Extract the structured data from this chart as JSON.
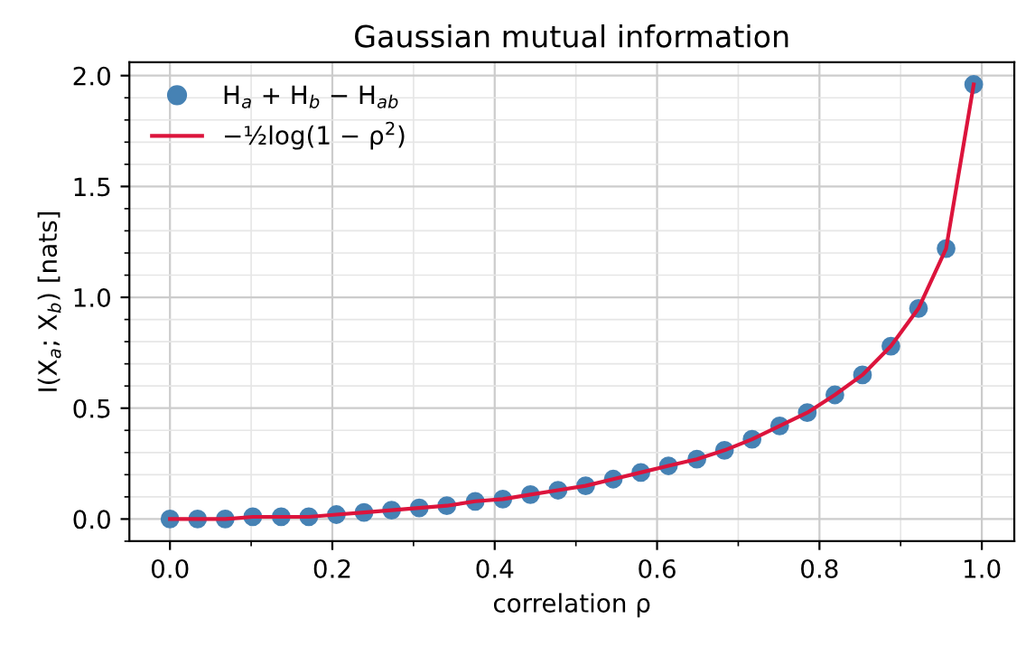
{
  "chart_data": {
    "type": "scatter",
    "title": "Gaussian mutual information",
    "xlabel": "correlation ρ",
    "ylabel": "I(X$_{a}$; X$_{b}$) [nats]",
    "x": [
      0,
      0.034,
      0.068,
      0.102,
      0.137,
      0.171,
      0.205,
      0.239,
      0.273,
      0.307,
      0.341,
      0.376,
      0.41,
      0.444,
      0.478,
      0.512,
      0.546,
      0.58,
      0.614,
      0.649,
      0.683,
      0.717,
      0.751,
      0.785,
      0.819,
      0.853,
      0.888,
      0.922,
      0.956,
      0.99
    ],
    "series": [
      {
        "name": "H$_{a}$ + H$_{b}$ − H$_{ab}$",
        "type": "scatter",
        "marker": "circle",
        "color": "#4682b4",
        "values": [
          0.0,
          0.0,
          0.0,
          0.01,
          0.01,
          0.01,
          0.02,
          0.03,
          0.04,
          0.05,
          0.06,
          0.08,
          0.09,
          0.11,
          0.13,
          0.15,
          0.18,
          0.21,
          0.24,
          0.27,
          0.31,
          0.36,
          0.42,
          0.48,
          0.56,
          0.65,
          0.78,
          0.95,
          1.22,
          1.96
        ]
      },
      {
        "name": "−½log(1 − ρ$^{2}$)",
        "type": "line",
        "marker": "none",
        "line_style": "solid",
        "color": "#dc143c",
        "values": [
          0.0,
          0.0,
          0.0,
          0.01,
          0.01,
          0.01,
          0.02,
          0.03,
          0.04,
          0.05,
          0.06,
          0.08,
          0.09,
          0.11,
          0.13,
          0.15,
          0.18,
          0.21,
          0.24,
          0.27,
          0.31,
          0.36,
          0.42,
          0.48,
          0.56,
          0.65,
          0.78,
          0.95,
          1.22,
          1.96
        ]
      }
    ],
    "xlim": [
      -0.05,
      1.04
    ],
    "xticks": [
      {
        "value": 0,
        "label": "0.0"
      },
      0.2,
      0.4,
      0.6,
      0.8,
      {
        "value": 1,
        "label": "1.0"
      }
    ],
    "ylim": [
      -0.1,
      2.06
    ],
    "yticks": [
      {
        "value": 0,
        "label": "0.0"
      },
      0.5,
      {
        "value": 1,
        "label": "1.0"
      },
      1.5,
      {
        "value": 2,
        "label": "2.0"
      }
    ],
    "grid": true,
    "legend": "top left"
  }
}
